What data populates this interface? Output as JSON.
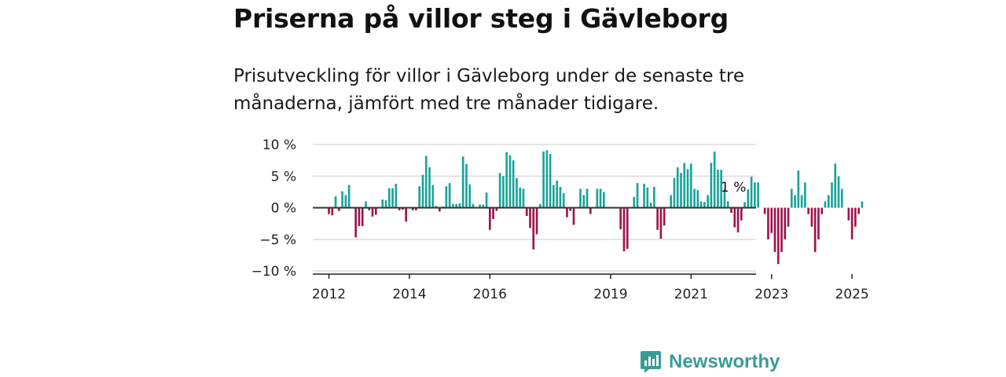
{
  "title": "Priserna på villor steg i Gävleborg",
  "subtitle": "Prisutveckling för villor i Gävleborg under de senaste tre månaderna, jämfört med tre månader tidigare.",
  "brand": {
    "name": "Newsworthy",
    "icon": "newsworthy-logo-icon",
    "color": "#3a9b95"
  },
  "colors": {
    "positive": "#1aa39a",
    "negative": "#a0134a",
    "grid": "#dddddd",
    "zero_line": "#333333"
  },
  "chart_data": {
    "type": "bar",
    "title": "Priserna på villor steg i Gävleborg",
    "xlabel": "",
    "ylabel": "",
    "ylim": [
      -10,
      10
    ],
    "grid": true,
    "y_ticks": [
      10,
      5,
      0,
      -5,
      -10
    ],
    "y_tick_labels": [
      "10 %",
      "5 %",
      "0 %",
      "−5 %",
      "−10 %"
    ],
    "x_ticks": [
      2012,
      2014,
      2016,
      2019,
      2021,
      2023,
      2025
    ],
    "x_start": 2012.0,
    "step": 0.08333,
    "annotation": "1 %",
    "values": [
      -1.0,
      -1.2,
      1.8,
      -0.5,
      2.6,
      2.0,
      3.6,
      0.0,
      -4.7,
      -2.9,
      -2.9,
      1.0,
      -0.4,
      -1.4,
      -1.1,
      0.0,
      1.3,
      1.2,
      3.1,
      3.1,
      3.8,
      -0.4,
      -0.3,
      -2.2,
      0.0,
      -0.4,
      -0.4,
      3.4,
      5.2,
      8.2,
      6.4,
      3.6,
      0.3,
      -0.6,
      0.2,
      3.4,
      3.9,
      0.6,
      0.6,
      0.7,
      8.1,
      6.9,
      3.7,
      0.6,
      0.0,
      0.5,
      0.5,
      2.4,
      -3.5,
      -1.8,
      -0.5,
      5.5,
      5.0,
      8.8,
      8.3,
      7.5,
      4.7,
      3.2,
      3.0,
      -1.3,
      -3.2,
      -6.6,
      -4.2,
      0.6,
      8.9,
      9.1,
      8.5,
      3.6,
      4.3,
      3.3,
      2.3,
      -1.5,
      -0.5,
      -2.7,
      0.0,
      3.0,
      2.0,
      3.0,
      -1.0,
      0.0,
      3.0,
      3.0,
      2.5,
      0.0,
      0.0,
      0.0,
      0.0,
      -3.4,
      -6.9,
      -6.5,
      0.0,
      1.7,
      3.9,
      0.0,
      3.8,
      3.2,
      0.8,
      3.3,
      -3.5,
      -4.9,
      -2.8,
      0.0,
      2.0,
      4.7,
      6.4,
      5.5,
      7.1,
      6.1,
      7.0,
      3.0,
      2.8,
      1.0,
      0.9,
      2.0,
      7.1,
      8.9,
      6.0,
      6.0,
      2.9,
      1.0,
      -0.8,
      -3.1,
      -3.9,
      -2.0,
      0.9,
      2.9,
      4.9,
      4.0,
      4.0,
      0.0,
      -1.0,
      -5.0,
      -4.0,
      -7.0,
      -8.9,
      -7.0,
      -5.0,
      -3.0,
      3.0,
      2.0,
      5.9,
      2.0,
      4.0,
      -1.0,
      -3.0,
      -7.0,
      -5.0,
      -1.0,
      1.0,
      2.0,
      4.0,
      7.0,
      5.0,
      3.0,
      0.0,
      -2.0,
      -5.0,
      -3.0,
      -1.0,
      1.0
    ]
  }
}
